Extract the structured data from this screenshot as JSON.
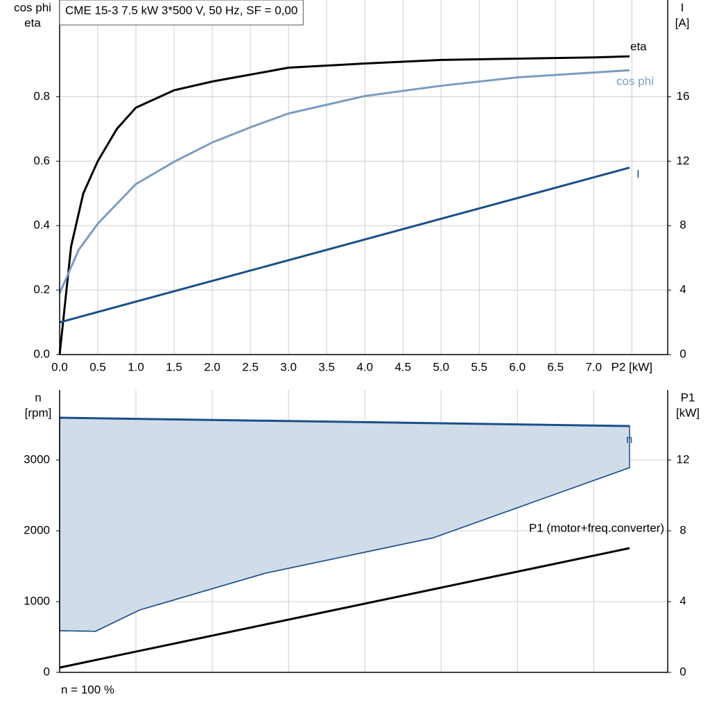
{
  "chart_data": [
    {
      "type": "line",
      "title": "CME 15-3   7.5 kW   3*500 V, 50 Hz, SF = 0,00",
      "ylabel": [
        "cos phi",
        "eta"
      ],
      "y2label": [
        "I",
        "[A]"
      ],
      "xlim": [
        0,
        7.97
      ],
      "ylim": [
        0,
        1.1
      ],
      "y2lim": [
        0,
        22
      ],
      "xticks": [
        {
          "value": 0,
          "label": "0.0"
        },
        0.5,
        {
          "value": 1,
          "label": "1.0"
        },
        1.5,
        {
          "value": 2,
          "label": "2.0"
        },
        2.5,
        {
          "value": 3,
          "label": "3.0"
        },
        3.5,
        {
          "value": 4,
          "label": "4.0"
        },
        4.5,
        {
          "value": 5,
          "label": "5.0"
        },
        5.5,
        {
          "value": 6,
          "label": "6.0"
        },
        6.5,
        {
          "value": 7,
          "label": "7.0"
        },
        {
          "value": 7.5,
          "label": "P2 [kW]"
        }
      ],
      "xtick_labels": true,
      "yticks": [
        {
          "value": 0,
          "label": "0.0"
        },
        0.2,
        0.4,
        0.6,
        0.8
      ],
      "y2ticks": [
        0,
        4,
        8,
        12,
        16
      ],
      "grid": true,
      "series": [
        {
          "name": "eta",
          "color": "#000000",
          "x": [
            0,
            0.15,
            0.31,
            0.5,
            0.75,
            1.0,
            1.5,
            2.0,
            3.0,
            4.0,
            5.0,
            6.0,
            7.0,
            7.47
          ],
          "values": [
            0,
            0.335,
            0.5,
            0.6,
            0.7,
            0.766,
            0.82,
            0.847,
            0.89,
            0.903,
            0.914,
            0.918,
            0.922,
            0.925
          ]
        },
        {
          "name": "cos phi",
          "color": "#7a9cc0",
          "x": [
            0,
            0.25,
            0.5,
            1.0,
            1.5,
            2.0,
            2.5,
            3.0,
            4.0,
            5.0,
            6.0,
            7.0,
            7.47
          ],
          "values": [
            0.19,
            0.325,
            0.406,
            0.529,
            0.598,
            0.658,
            0.705,
            0.748,
            0.802,
            0.834,
            0.86,
            0.875,
            0.882
          ]
        },
        {
          "name": "I",
          "color": "#1a4f8a",
          "axis": "y2",
          "x": [
            0,
            7.47
          ],
          "values": [
            2.0,
            11.6
          ]
        }
      ]
    },
    {
      "type": "line",
      "ylabel": [
        "n",
        "[rpm]"
      ],
      "y2label": [
        "P1",
        "[kW]"
      ],
      "note": "n = 100 %",
      "xlim": [
        0,
        7.97
      ],
      "ylim": [
        0,
        3990
      ],
      "y2lim": [
        0,
        15.96
      ],
      "xticks": [
        1,
        2,
        3,
        4,
        5,
        6,
        7
      ],
      "xtick_labels": false,
      "yticks": [
        0,
        1000,
        2000,
        3000
      ],
      "y2ticks": [
        0,
        4,
        8,
        12
      ],
      "grid": true,
      "series": [
        {
          "name": "n",
          "color": "#1a4f8a",
          "fill": "#d0dce8",
          "x": [
            0,
            7.47
          ],
          "values": [
            3598,
            3480
          ],
          "lower": {
            "x": [
              0,
              0.47,
              1.05,
              2.7,
              4.9,
              7.47
            ],
            "values": [
              588,
              580,
              882,
              1402,
              1902,
              2892
            ]
          }
        },
        {
          "name": "P1 (motor+freq.converter)",
          "color": "#000000",
          "axis": "y2",
          "x": [
            0,
            7.47
          ],
          "values": [
            0.27,
            7.02
          ]
        }
      ]
    }
  ]
}
